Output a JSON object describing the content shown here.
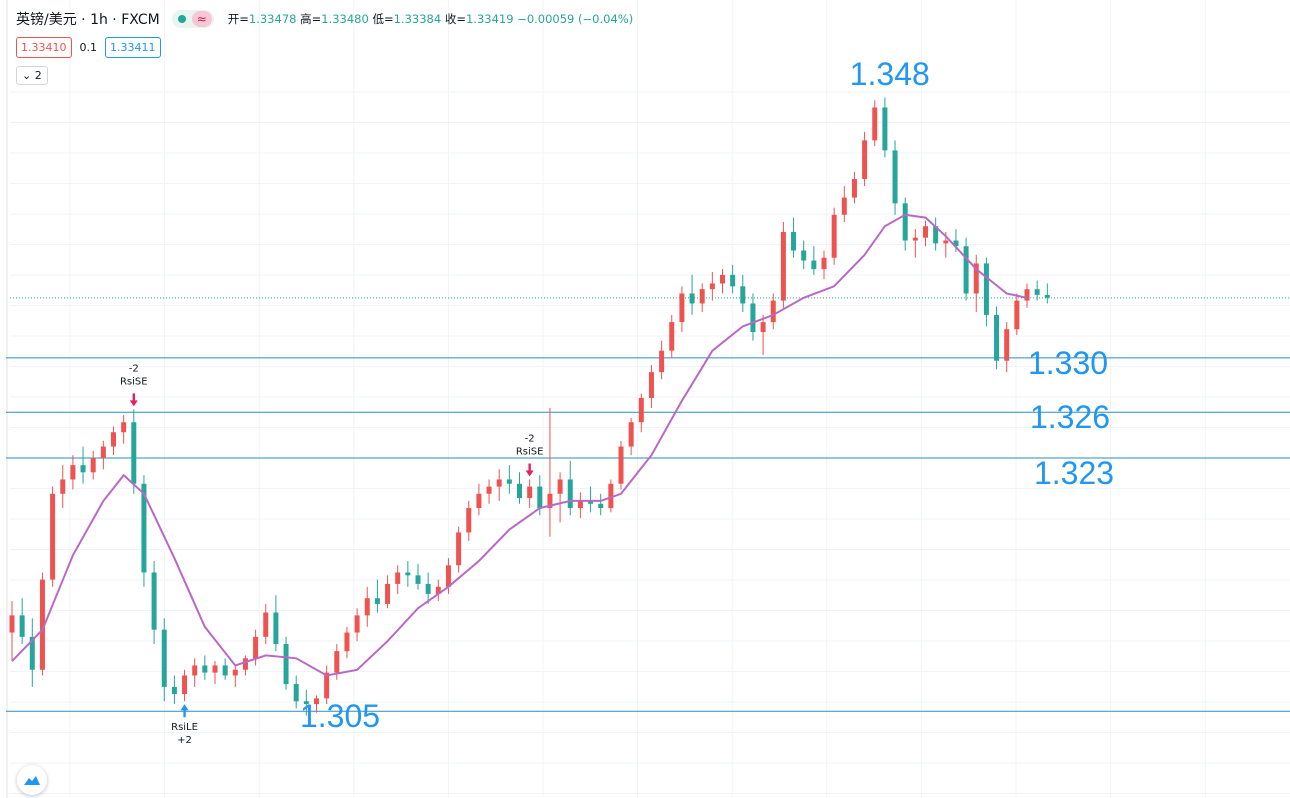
{
  "header": {
    "symbol": "英镑/美元 · 1h · FXCM",
    "wave_glyph": "≈",
    "open_label": "开=",
    "open": "1.33478",
    "high_label": "高=",
    "high": "1.33480",
    "low_label": "低=",
    "low": "1.33384",
    "close_label": "收=",
    "close": "1.33419",
    "change": "−0.00059 (−0.04%)",
    "sell_price": "1.33410",
    "spread": "0.1",
    "buy_price": "1.33411",
    "collapse_label": "⌄ 2"
  },
  "colors": {
    "up": "#ef5350",
    "down": "#26a69a",
    "ma": "#ba68c8",
    "level": "#2a8fbd",
    "annotation": "#2196f3"
  },
  "chart_data": {
    "type": "candlestick",
    "ylim": [
      1.3035,
      1.349
    ],
    "grid": true,
    "current_price": 1.33419,
    "levels": [
      {
        "value": 1.33,
        "label": "1.330"
      },
      {
        "value": 1.3262,
        "label": "1.326"
      },
      {
        "value": 1.323,
        "label": "1.323"
      },
      {
        "value": 1.3053,
        "label": "1.305"
      }
    ],
    "peak_label": {
      "value": 1.348,
      "label": "1.348",
      "at_index": 85
    },
    "candles": [
      [
        1.3108,
        1.313,
        1.3088,
        1.312
      ],
      [
        1.312,
        1.3132,
        1.31,
        1.3105
      ],
      [
        1.3105,
        1.3118,
        1.307,
        1.3082
      ],
      [
        1.3082,
        1.315,
        1.3078,
        1.3145
      ],
      [
        1.3145,
        1.321,
        1.314,
        1.3205
      ],
      [
        1.3205,
        1.3225,
        1.3195,
        1.3215
      ],
      [
        1.3215,
        1.3232,
        1.3208,
        1.3225
      ],
      [
        1.3225,
        1.3238,
        1.3212,
        1.322
      ],
      [
        1.322,
        1.3235,
        1.3215,
        1.323
      ],
      [
        1.323,
        1.3242,
        1.3222,
        1.3238
      ],
      [
        1.3238,
        1.3252,
        1.3232,
        1.3248
      ],
      [
        1.3248,
        1.326,
        1.324,
        1.3255
      ],
      [
        1.3255,
        1.3264,
        1.3205,
        1.3212
      ],
      [
        1.3212,
        1.3218,
        1.314,
        1.315
      ],
      [
        1.315,
        1.3158,
        1.31,
        1.311
      ],
      [
        1.311,
        1.3118,
        1.306,
        1.307
      ],
      [
        1.307,
        1.3078,
        1.3058,
        1.3065
      ],
      [
        1.3065,
        1.3082,
        1.306,
        1.3078
      ],
      [
        1.3078,
        1.309,
        1.307,
        1.3085
      ],
      [
        1.3085,
        1.3092,
        1.3075,
        1.308
      ],
      [
        1.308,
        1.3088,
        1.3072,
        1.3085
      ],
      [
        1.3085,
        1.309,
        1.3075,
        1.3078
      ],
      [
        1.3078,
        1.3086,
        1.307,
        1.3082
      ],
      [
        1.3082,
        1.3092,
        1.3078,
        1.309
      ],
      [
        1.309,
        1.311,
        1.3085,
        1.3105
      ],
      [
        1.3105,
        1.3128,
        1.31,
        1.3122
      ],
      [
        1.3122,
        1.3134,
        1.3095,
        1.31
      ],
      [
        1.31,
        1.3105,
        1.3068,
        1.3072
      ],
      [
        1.3072,
        1.3078,
        1.3055,
        1.306
      ],
      [
        1.306,
        1.3068,
        1.305,
        1.3058
      ],
      [
        1.3058,
        1.3064,
        1.3052,
        1.3062
      ],
      [
        1.3062,
        1.3085,
        1.3058,
        1.308
      ],
      [
        1.308,
        1.31,
        1.3075,
        1.3095
      ],
      [
        1.3095,
        1.3112,
        1.309,
        1.3108
      ],
      [
        1.3108,
        1.3125,
        1.3102,
        1.312
      ],
      [
        1.312,
        1.314,
        1.3112,
        1.3132
      ],
      [
        1.3132,
        1.3145,
        1.3122,
        1.3128
      ],
      [
        1.3128,
        1.3148,
        1.3125,
        1.3142
      ],
      [
        1.3142,
        1.3155,
        1.3135,
        1.315
      ],
      [
        1.315,
        1.3158,
        1.314,
        1.3148
      ],
      [
        1.3148,
        1.3156,
        1.3138,
        1.3142
      ],
      [
        1.3142,
        1.315,
        1.3128,
        1.3135
      ],
      [
        1.3135,
        1.3145,
        1.313,
        1.314
      ],
      [
        1.314,
        1.316,
        1.3135,
        1.3155
      ],
      [
        1.3155,
        1.3182,
        1.315,
        1.3178
      ],
      [
        1.3178,
        1.32,
        1.3172,
        1.3195
      ],
      [
        1.3195,
        1.3212,
        1.319,
        1.3205
      ],
      [
        1.3205,
        1.3215,
        1.3198,
        1.321
      ],
      [
        1.321,
        1.3222,
        1.32,
        1.3215
      ],
      [
        1.3215,
        1.3225,
        1.3205,
        1.3212
      ],
      [
        1.3212,
        1.322,
        1.3198,
        1.3202
      ],
      [
        1.3202,
        1.3215,
        1.3195,
        1.321
      ],
      [
        1.321,
        1.3218,
        1.319,
        1.3195
      ],
      [
        1.3195,
        1.3265,
        1.3175,
        1.3205
      ],
      [
        1.3205,
        1.322,
        1.3185,
        1.3215
      ],
      [
        1.3215,
        1.3228,
        1.319,
        1.3195
      ],
      [
        1.3195,
        1.3206,
        1.3188,
        1.32
      ],
      [
        1.32,
        1.321,
        1.3192,
        1.3198
      ],
      [
        1.3198,
        1.3205,
        1.319,
        1.3195
      ],
      [
        1.3195,
        1.3215,
        1.3192,
        1.3212
      ],
      [
        1.3212,
        1.3242,
        1.3208,
        1.3238
      ],
      [
        1.3238,
        1.3258,
        1.3232,
        1.3255
      ],
      [
        1.3255,
        1.3275,
        1.3248,
        1.3272
      ],
      [
        1.3272,
        1.3295,
        1.3265,
        1.329
      ],
      [
        1.329,
        1.3312,
        1.3285,
        1.3305
      ],
      [
        1.3305,
        1.333,
        1.33,
        1.3325
      ],
      [
        1.3325,
        1.335,
        1.3318,
        1.3345
      ],
      [
        1.3345,
        1.3358,
        1.333,
        1.3338
      ],
      [
        1.3338,
        1.3352,
        1.3332,
        1.3348
      ],
      [
        1.3348,
        1.336,
        1.334,
        1.3352
      ],
      [
        1.3352,
        1.3362,
        1.3345,
        1.3358
      ],
      [
        1.3358,
        1.3365,
        1.3345,
        1.335
      ],
      [
        1.335,
        1.3358,
        1.3332,
        1.3338
      ],
      [
        1.3338,
        1.3345,
        1.3312,
        1.3318
      ],
      [
        1.3318,
        1.333,
        1.3302,
        1.3325
      ],
      [
        1.3325,
        1.3345,
        1.332,
        1.334
      ],
      [
        1.334,
        1.3395,
        1.3335,
        1.3388
      ],
      [
        1.3388,
        1.3398,
        1.337,
        1.3375
      ],
      [
        1.3375,
        1.3382,
        1.3362,
        1.3368
      ],
      [
        1.3368,
        1.3378,
        1.3358,
        1.3362
      ],
      [
        1.3362,
        1.3375,
        1.3355,
        1.337
      ],
      [
        1.337,
        1.3405,
        1.3365,
        1.34
      ],
      [
        1.34,
        1.342,
        1.3395,
        1.3412
      ],
      [
        1.3412,
        1.343,
        1.3408,
        1.3425
      ],
      [
        1.3425,
        1.3458,
        1.342,
        1.3452
      ],
      [
        1.3452,
        1.348,
        1.3448,
        1.3475
      ],
      [
        1.3475,
        1.3482,
        1.344,
        1.3445
      ],
      [
        1.3445,
        1.3452,
        1.34,
        1.3408
      ],
      [
        1.3408,
        1.3412,
        1.3375,
        1.3382
      ],
      [
        1.3382,
        1.339,
        1.337,
        1.3384
      ],
      [
        1.3384,
        1.3396,
        1.3378,
        1.3392
      ],
      [
        1.3392,
        1.3398,
        1.3375,
        1.338
      ],
      [
        1.338,
        1.3388,
        1.337,
        1.3382
      ],
      [
        1.3382,
        1.339,
        1.3374,
        1.3378
      ],
      [
        1.3378,
        1.3384,
        1.334,
        1.3345
      ],
      [
        1.3345,
        1.3372,
        1.3332,
        1.3366
      ],
      [
        1.3366,
        1.337,
        1.3322,
        1.333
      ],
      [
        1.333,
        1.3336,
        1.3292,
        1.3298
      ],
      [
        1.3298,
        1.3325,
        1.329,
        1.332
      ],
      [
        1.332,
        1.3345,
        1.3316,
        1.334
      ],
      [
        1.334,
        1.3352,
        1.3335,
        1.3348
      ],
      [
        1.3348,
        1.3354,
        1.334,
        1.3344
      ],
      [
        1.3344,
        1.3352,
        1.3338,
        1.3342
      ]
    ],
    "ma": [
      [
        0,
        1.3088
      ],
      [
        3,
        1.311
      ],
      [
        6,
        1.3162
      ],
      [
        9,
        1.32
      ],
      [
        11,
        1.3218
      ],
      [
        13,
        1.3205
      ],
      [
        16,
        1.316
      ],
      [
        19,
        1.3112
      ],
      [
        22,
        1.3085
      ],
      [
        25,
        1.3092
      ],
      [
        28,
        1.309
      ],
      [
        31,
        1.3078
      ],
      [
        34,
        1.3082
      ],
      [
        37,
        1.3102
      ],
      [
        40,
        1.3125
      ],
      [
        43,
        1.314
      ],
      [
        46,
        1.3158
      ],
      [
        49,
        1.318
      ],
      [
        52,
        1.3195
      ],
      [
        55,
        1.32
      ],
      [
        58,
        1.32
      ],
      [
        60,
        1.3205
      ],
      [
        63,
        1.3232
      ],
      [
        66,
        1.327
      ],
      [
        69,
        1.3305
      ],
      [
        72,
        1.3322
      ],
      [
        75,
        1.333
      ],
      [
        78,
        1.3342
      ],
      [
        81,
        1.335
      ],
      [
        84,
        1.3372
      ],
      [
        86,
        1.3392
      ],
      [
        88,
        1.34
      ],
      [
        90,
        1.3398
      ],
      [
        92,
        1.3385
      ],
      [
        95,
        1.3362
      ],
      [
        98,
        1.3345
      ],
      [
        100,
        1.3342
      ]
    ],
    "signals": [
      {
        "index": 12,
        "type": "short",
        "name": "RsiSE",
        "qty": "-2"
      },
      {
        "index": 17,
        "type": "long",
        "name": "RsiLE",
        "qty": "+2"
      },
      {
        "index": 51,
        "type": "short",
        "name": "RsiSE",
        "qty": "-2"
      }
    ]
  }
}
